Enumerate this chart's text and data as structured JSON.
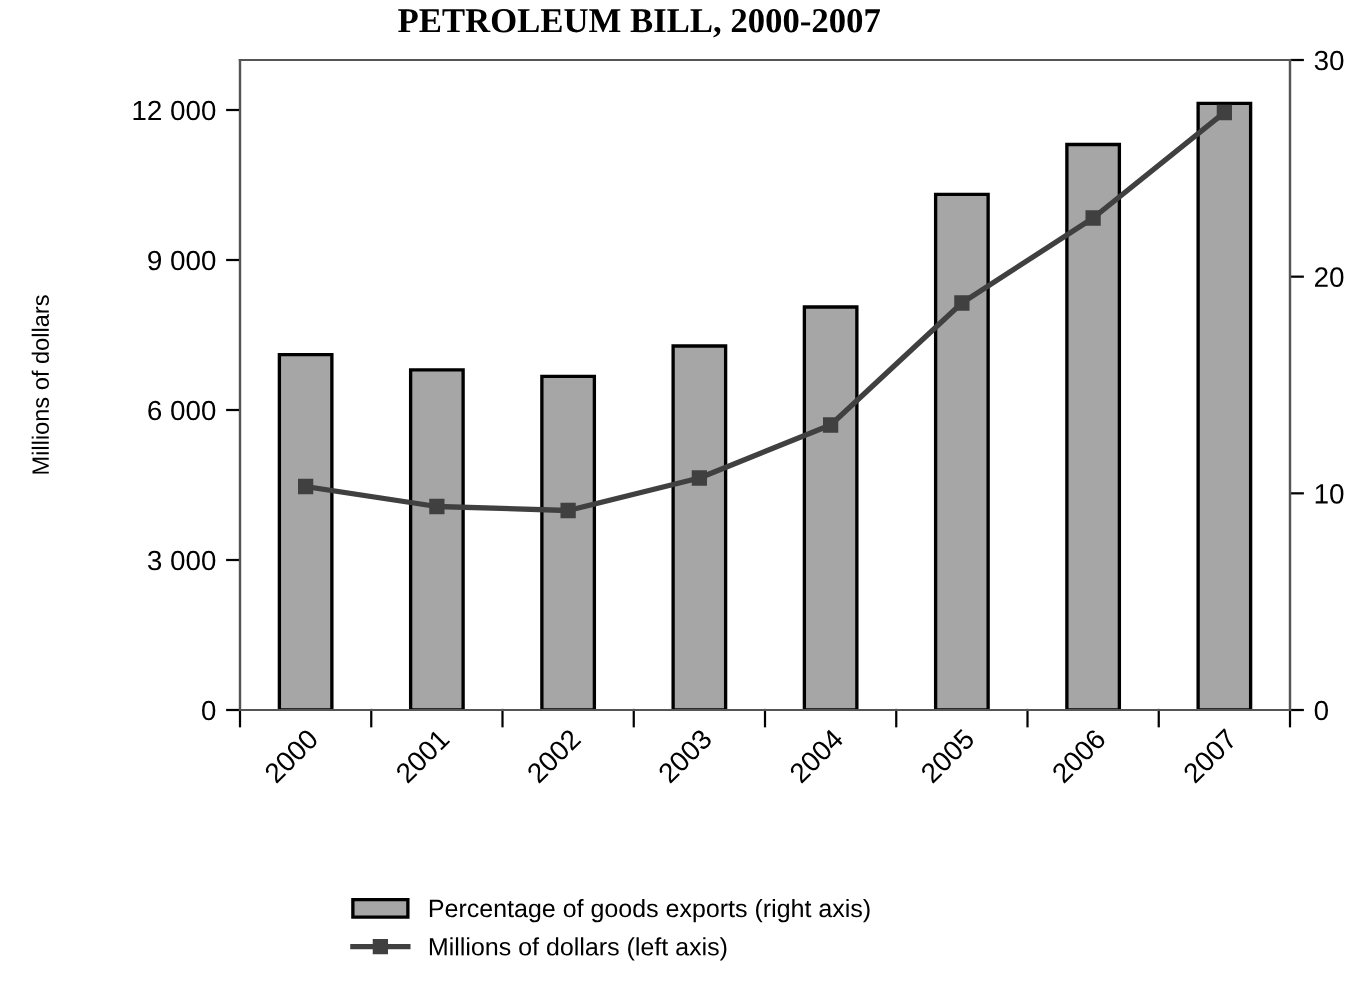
{
  "chart_data": {
    "type": "bar",
    "title": "PETROLEUM BILL, 2000-2007",
    "ylabel": "Millions of dollars",
    "categories": [
      "2000",
      "2001",
      "2002",
      "2003",
      "2004",
      "2005",
      "2006",
      "2007"
    ],
    "series": [
      {
        "name": "Percentage of goods exports (right axis)",
        "axis": "y2",
        "color": "#a6a6a6",
        "values": [
          16.4,
          15.7,
          15.4,
          16.8,
          18.6,
          23.8,
          26.1,
          28.0
        ]
      },
      {
        "name": "Millions of dollars (left axis)",
        "type": "line",
        "axis": "y",
        "color": "#404040",
        "values": [
          4470,
          4070,
          3990,
          4640,
          5700,
          8140,
          9840,
          11950
        ]
      }
    ],
    "ylim": [
      0,
      13000
    ],
    "yticks": [
      0,
      {
        "value": 3000,
        "label": "3 000"
      },
      {
        "value": 6000,
        "label": "6 000"
      },
      {
        "value": 9000,
        "label": "9 000"
      },
      {
        "value": 12000,
        "label": "12 000"
      }
    ],
    "y2lim": [
      0,
      30
    ],
    "y2ticks": [
      0,
      10,
      20,
      30
    ],
    "grid": false,
    "legend": "bottom",
    "marker": "square",
    "line_style": "solid"
  }
}
